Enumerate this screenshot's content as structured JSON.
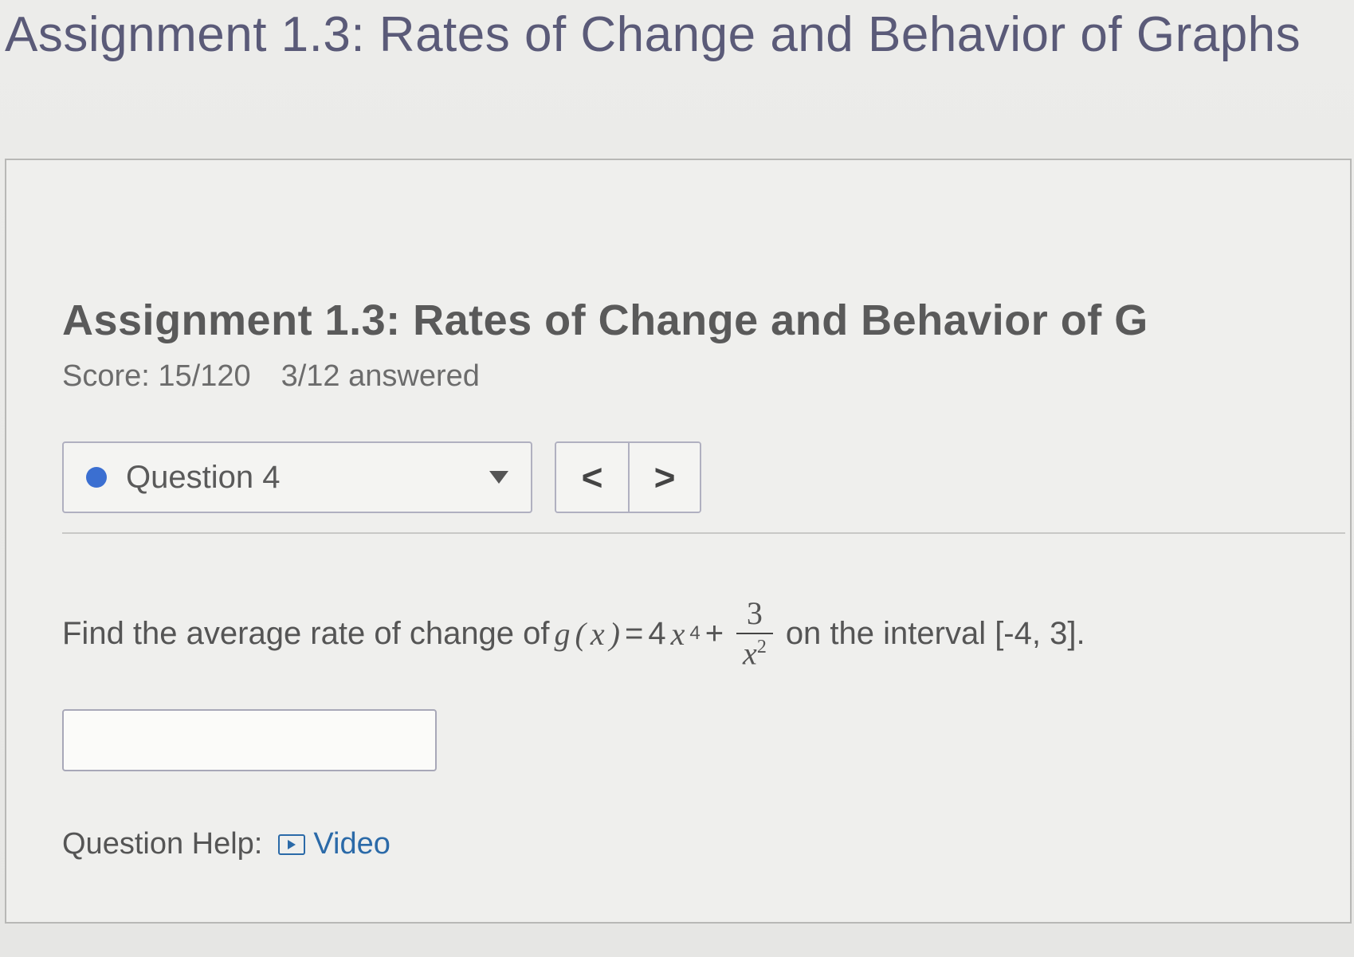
{
  "page": {
    "title": "Assignment 1.3: Rates of Change and Behavior of Graphs"
  },
  "assignment": {
    "heading": "Assignment 1.3: Rates of Change and Behavior of G",
    "score_label": "Score: 15/120",
    "answered_label": "3/12 answered"
  },
  "nav": {
    "question_label": "Question 4",
    "prev_glyph": "<",
    "next_glyph": ">"
  },
  "question": {
    "prompt_prefix": "Find the average rate of change of ",
    "func_name": "g",
    "func_var": "x",
    "equals": " = ",
    "term1_coef": "4",
    "term1_var": "x",
    "term1_exp": "4",
    "plus": " + ",
    "frac_num": "3",
    "frac_den_var": "x",
    "frac_den_exp": "2",
    "prompt_suffix": " on the interval [-4, 3].",
    "answer_value": ""
  },
  "help": {
    "label": "Question Help:",
    "video_label": "Video"
  },
  "colors": {
    "title": "#5a5a78",
    "heading": "#5a5a5a",
    "link": "#2b6aa8",
    "dot": "#3b6fd1",
    "border": "#b0b0c0",
    "background": "#efefed"
  }
}
